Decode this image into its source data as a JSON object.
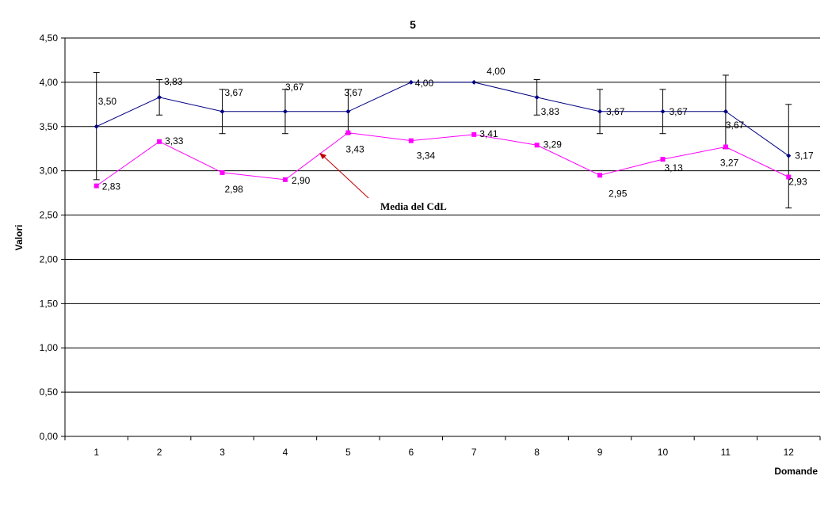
{
  "chart_data": {
    "type": "line",
    "title": "5",
    "xlabel": "Domande",
    "ylabel": "Valori",
    "categories": [
      "1",
      "2",
      "3",
      "4",
      "5",
      "6",
      "7",
      "8",
      "9",
      "10",
      "11",
      "12"
    ],
    "ylim": [
      0,
      4.5
    ],
    "yticks": [
      "0,00",
      "0,50",
      "1,00",
      "1,50",
      "2,00",
      "2,50",
      "3,00",
      "3,50",
      "4,00",
      "4,50"
    ],
    "grid": true,
    "legend": "none",
    "series": [
      {
        "values": [
          3.5,
          3.83,
          3.67,
          3.67,
          3.67,
          4.0,
          4.0,
          3.83,
          3.67,
          3.67,
          3.67,
          3.17
        ],
        "labels": [
          "3,50",
          "3,83",
          "3,67",
          "3,67",
          "3,67",
          "4,00",
          "4,00",
          "3,83",
          "3,67",
          "3,67",
          "3,67",
          "3,17"
        ],
        "error_low": [
          2.9,
          3.63,
          3.42,
          3.42,
          3.42,
          4.0,
          4.0,
          3.63,
          3.42,
          3.42,
          3.25,
          2.58
        ],
        "error_high": [
          4.11,
          4.03,
          3.92,
          3.92,
          3.92,
          4.0,
          4.0,
          4.03,
          3.92,
          3.92,
          4.08,
          3.75
        ],
        "color": "#000080",
        "marker": "diamond"
      },
      {
        "values": [
          2.83,
          3.33,
          2.98,
          2.9,
          3.43,
          3.34,
          3.41,
          3.29,
          2.95,
          3.13,
          3.27,
          2.93
        ],
        "labels": [
          "2,83",
          "3,33",
          "2,98",
          "2,90",
          "3,43",
          "3,34",
          "3,41",
          "3,29",
          "2,95",
          "3,13",
          "3,27",
          "2,93"
        ],
        "color": "#ff00ff",
        "marker": "square"
      }
    ],
    "annotation": {
      "text": "Media del CdL",
      "arrow_color": "#c00000"
    }
  }
}
